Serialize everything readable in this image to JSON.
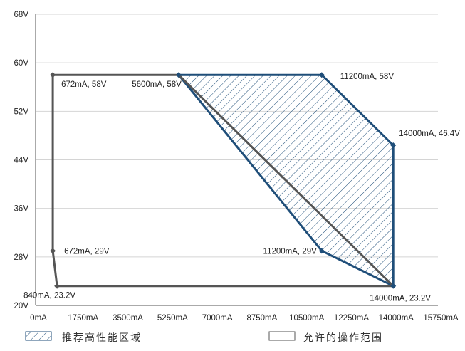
{
  "chart_data": {
    "type": "area",
    "xlim": [
      0,
      15750
    ],
    "ylim": [
      20,
      68
    ],
    "x_ticks": [
      0,
      1750,
      3500,
      5250,
      7000,
      8750,
      10500,
      12250,
      14000,
      15750
    ],
    "x_tick_labels": [
      "0mA",
      "1750mA",
      "3500mA",
      "5250mA",
      "7000mA",
      "8750mA",
      "10500mA",
      "12250mA",
      "14000mA",
      "15750mA"
    ],
    "y_ticks": [
      20,
      28,
      36,
      44,
      52,
      60,
      68
    ],
    "y_tick_labels": [
      "20V",
      "28V",
      "36V",
      "44V",
      "52V",
      "60V",
      "68V"
    ],
    "grid": "horizontal",
    "legend_position": "bottom",
    "series": [
      {
        "name": "推荐高性能区域",
        "style": "hatched",
        "color": "#1f4e79",
        "points": [
          {
            "x": 5600,
            "y": 58
          },
          {
            "x": 11200,
            "y": 58
          },
          {
            "x": 14000,
            "y": 46.4
          },
          {
            "x": 14000,
            "y": 23.2
          },
          {
            "x": 11200,
            "y": 29
          }
        ]
      },
      {
        "name": "允许的操作范围",
        "style": "outline",
        "color": "#555555",
        "points": [
          {
            "x": 672,
            "y": 58
          },
          {
            "x": 5600,
            "y": 58
          },
          {
            "x": 14000,
            "y": 23.2
          },
          {
            "x": 840,
            "y": 23.2
          },
          {
            "x": 672,
            "y": 29
          }
        ]
      }
    ],
    "annotations": [
      {
        "text": "672mA, 58V",
        "x": 672,
        "y": 58
      },
      {
        "text": "5600mA, 58V",
        "x": 5600,
        "y": 58
      },
      {
        "text": "11200mA, 58V",
        "x": 11200,
        "y": 58
      },
      {
        "text": "14000mA, 46.4V",
        "x": 14000,
        "y": 46.4
      },
      {
        "text": "672mA, 29V",
        "x": 672,
        "y": 29
      },
      {
        "text": "11200mA, 29V",
        "x": 11200,
        "y": 29
      },
      {
        "text": "840mA, 23.2V",
        "x": 840,
        "y": 23.2
      },
      {
        "text": "14000mA, 23.2V",
        "x": 14000,
        "y": 23.2
      }
    ]
  }
}
